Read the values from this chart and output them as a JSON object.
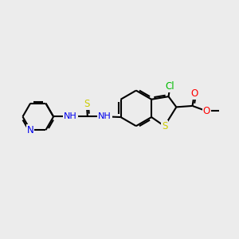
{
  "background_color": "#ececec",
  "bond_color": "#000000",
  "bond_width": 1.5,
  "atom_colors": {
    "N": "#0000ee",
    "O": "#ff0000",
    "S": "#cccc00",
    "Cl": "#00bb00"
  },
  "font_size": 8.5,
  "figsize": [
    3.0,
    3.0
  ],
  "dpi": 100
}
